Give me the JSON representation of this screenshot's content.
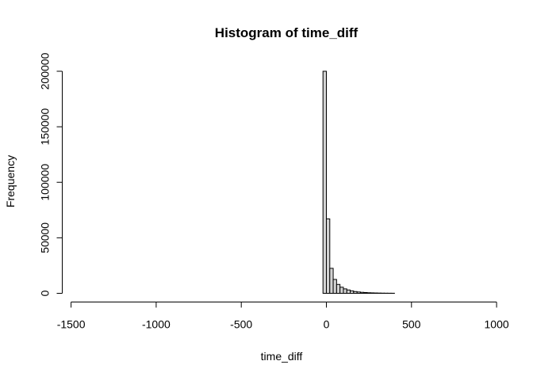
{
  "chart_data": {
    "type": "bar",
    "title": "Histogram of time_diff",
    "xlabel": "time_diff",
    "ylabel": "Frequency",
    "xlim": [
      -1450,
      920
    ],
    "ylim": [
      0,
      200000
    ],
    "x_ticks": [
      -1500,
      -1000,
      -500,
      0,
      500,
      1000
    ],
    "x_tick_labels": [
      "-1500",
      "-1000",
      "-500",
      "0",
      "500",
      "1000"
    ],
    "y_ticks": [
      0,
      50000,
      100000,
      150000,
      200000
    ],
    "y_tick_labels": [
      "0",
      "50000",
      "100000",
      "150000",
      "200000"
    ],
    "bin_width": 20,
    "bin_start": -1440,
    "bin_end": 920,
    "bins": [
      {
        "x0": -20,
        "x1": 0,
        "count": 200000
      },
      {
        "x0": 0,
        "x1": 20,
        "count": 67000
      },
      {
        "x0": 20,
        "x1": 40,
        "count": 22500
      },
      {
        "x0": 40,
        "x1": 60,
        "count": 12500
      },
      {
        "x0": 60,
        "x1": 80,
        "count": 8000
      },
      {
        "x0": 80,
        "x1": 100,
        "count": 5500
      },
      {
        "x0": 100,
        "x1": 120,
        "count": 4000
      },
      {
        "x0": 120,
        "x1": 140,
        "count": 3000
      },
      {
        "x0": 140,
        "x1": 160,
        "count": 2200
      },
      {
        "x0": 160,
        "x1": 180,
        "count": 1600
      },
      {
        "x0": 180,
        "x1": 200,
        "count": 1200
      },
      {
        "x0": 200,
        "x1": 220,
        "count": 900
      },
      {
        "x0": 220,
        "x1": 240,
        "count": 700
      },
      {
        "x0": 240,
        "x1": 260,
        "count": 500
      },
      {
        "x0": 260,
        "x1": 280,
        "count": 400
      },
      {
        "x0": 280,
        "x1": 300,
        "count": 300
      },
      {
        "x0": 300,
        "x1": 320,
        "count": 220
      },
      {
        "x0": 320,
        "x1": 340,
        "count": 160
      },
      {
        "x0": 340,
        "x1": 360,
        "count": 120
      },
      {
        "x0": 360,
        "x1": 380,
        "count": 90
      },
      {
        "x0": 380,
        "x1": 400,
        "count": 70
      }
    ],
    "bar_fill": "#d3d3d3",
    "bar_stroke": "#000000"
  }
}
